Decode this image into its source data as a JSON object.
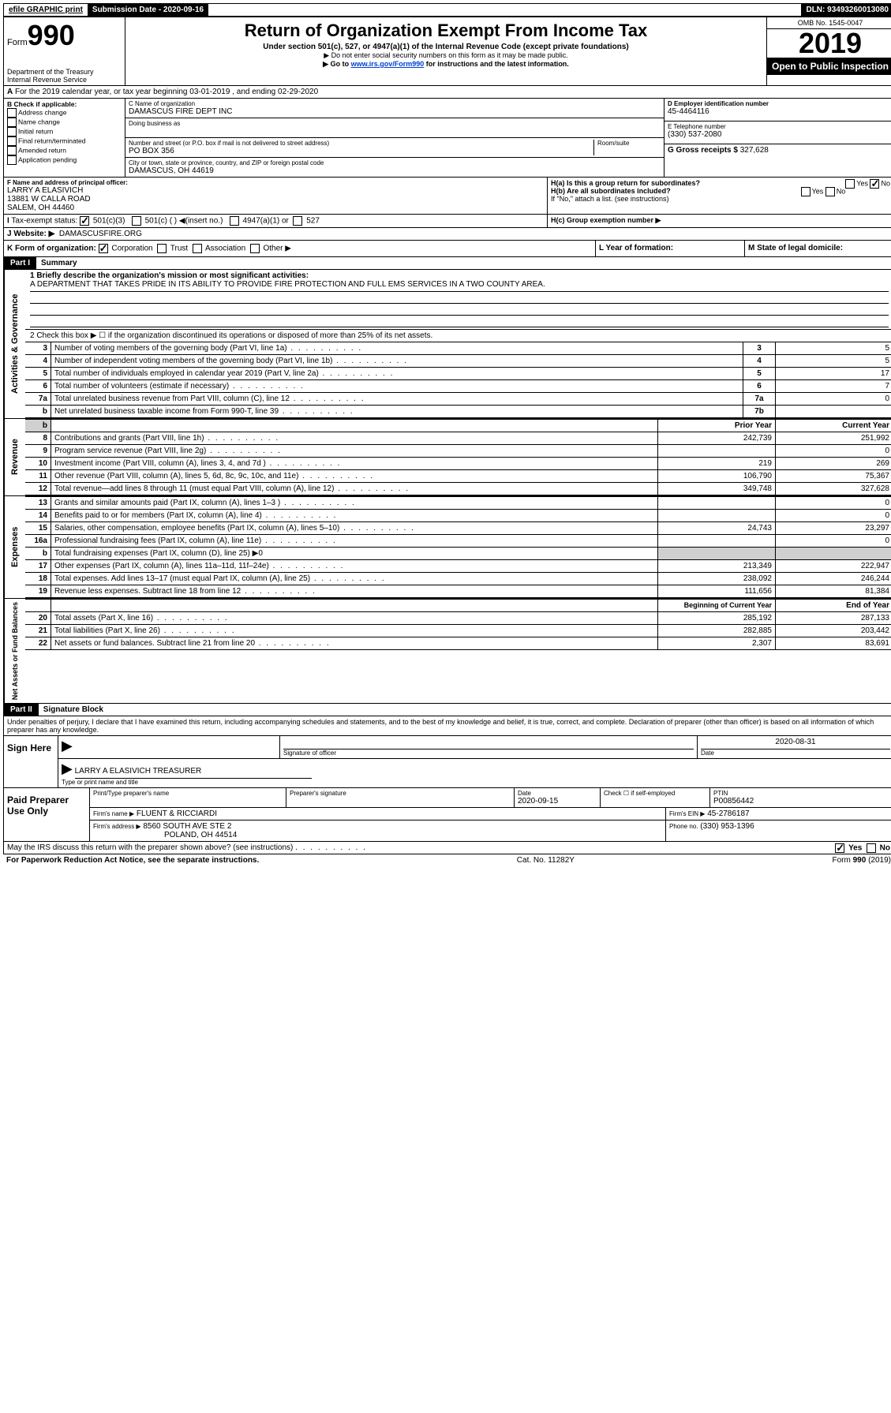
{
  "topbar": {
    "efile": "efile GRAPHIC print",
    "submission_label": "Submission Date - 2020-09-16",
    "dln_label": "DLN: 93493260013080"
  },
  "header": {
    "form_label": "Form",
    "form_number": "990",
    "dept": "Department of the Treasury\nInternal Revenue Service",
    "title": "Return of Organization Exempt From Income Tax",
    "subtitle": "Under section 501(c), 527, or 4947(a)(1) of the Internal Revenue Code (except private foundations)",
    "note1": "▶ Do not enter social security numbers on this form as it may be made public.",
    "note2_pre": "▶ Go to ",
    "note2_link": "www.irs.gov/Form990",
    "note2_post": " for instructions and the latest information.",
    "omb": "OMB No. 1545-0047",
    "year": "2019",
    "open": "Open to Public Inspection"
  },
  "line_a": "For the 2019 calendar year, or tax year beginning 03-01-2019    , and ending 02-29-2020",
  "box_b": {
    "label": "B Check if applicable:",
    "items": [
      "Address change",
      "Name change",
      "Initial return",
      "Final return/terminated",
      "Amended return",
      "Application pending"
    ]
  },
  "box_c": {
    "name_label": "C Name of organization",
    "name": "DAMASCUS FIRE DEPT INC",
    "dba_label": "Doing business as",
    "addr_label": "Number and street (or P.O. box if mail is not delivered to street address)",
    "room_label": "Room/suite",
    "addr": "PO BOX 356",
    "city_label": "City or town, state or province, country, and ZIP or foreign postal code",
    "city": "DAMASCUS, OH  44619"
  },
  "box_d": {
    "label": "D Employer identification number",
    "val": "45-4464116"
  },
  "box_e": {
    "label": "E Telephone number",
    "val": "(330) 537-2080"
  },
  "box_g": {
    "label": "G Gross receipts $",
    "val": "327,628"
  },
  "box_f": {
    "label": "F Name and address of principal officer:",
    "name": "LARRY A ELASIVICH",
    "addr1": "13881 W CALLA ROAD",
    "addr2": "SALEM, OH  44460"
  },
  "box_h": {
    "a_label": "H(a)  Is this a group return for subordinates?",
    "b_label": "H(b)  Are all subordinates included?",
    "b_note": "If \"No,\" attach a list. (see instructions)",
    "c_label": "H(c)  Group exemption number ▶",
    "yes": "Yes",
    "no": "No"
  },
  "box_i": {
    "label": "Tax-exempt status:",
    "opt1": "501(c)(3)",
    "opt2": "501(c) (  ) ◀(insert no.)",
    "opt3": "4947(a)(1) or",
    "opt4": "527"
  },
  "box_j": {
    "label": "Website: ▶",
    "val": "DAMASCUSFIRE.ORG"
  },
  "box_k": {
    "label": "K Form of organization:",
    "corp": "Corporation",
    "trust": "Trust",
    "assoc": "Association",
    "other": "Other ▶"
  },
  "box_l": {
    "label": "L Year of formation:"
  },
  "box_m": {
    "label": "M State of legal domicile:"
  },
  "part1": {
    "header": "Part I",
    "title": "Summary",
    "l1_label": "1  Briefly describe the organization's mission or most significant activities:",
    "l1_text": "A DEPARTMENT THAT TAKES PRIDE IN ITS ABILITY TO PROVIDE FIRE PROTECTION AND FULL EMS SERVICES IN A TWO COUNTY AREA.",
    "l2": "2   Check this box ▶ ☐  if the organization discontinued its operations or disposed of more than 25% of its net assets.",
    "rows_gov": [
      {
        "n": "3",
        "d": "Number of voting members of the governing body (Part VI, line 1a)",
        "ln": "3",
        "v": "5"
      },
      {
        "n": "4",
        "d": "Number of independent voting members of the governing body (Part VI, line 1b)",
        "ln": "4",
        "v": "5"
      },
      {
        "n": "5",
        "d": "Total number of individuals employed in calendar year 2019 (Part V, line 2a)",
        "ln": "5",
        "v": "17"
      },
      {
        "n": "6",
        "d": "Total number of volunteers (estimate if necessary)",
        "ln": "6",
        "v": "7"
      },
      {
        "n": "7a",
        "d": "Total unrelated business revenue from Part VIII, column (C), line 12",
        "ln": "7a",
        "v": "0"
      },
      {
        "n": "b",
        "d": "Net unrelated business taxable income from Form 990-T, line 39",
        "ln": "7b",
        "v": ""
      }
    ],
    "prior_label": "Prior Year",
    "current_label": "Current Year",
    "rows_rev": [
      {
        "n": "8",
        "d": "Contributions and grants (Part VIII, line 1h)",
        "p": "242,739",
        "c": "251,992"
      },
      {
        "n": "9",
        "d": "Program service revenue (Part VIII, line 2g)",
        "p": "",
        "c": "0"
      },
      {
        "n": "10",
        "d": "Investment income (Part VIII, column (A), lines 3, 4, and 7d )",
        "p": "219",
        "c": "269"
      },
      {
        "n": "11",
        "d": "Other revenue (Part VIII, column (A), lines 5, 6d, 8c, 9c, 10c, and 11e)",
        "p": "106,790",
        "c": "75,367"
      },
      {
        "n": "12",
        "d": "Total revenue—add lines 8 through 11 (must equal Part VIII, column (A), line 12)",
        "p": "349,748",
        "c": "327,628"
      }
    ],
    "rows_exp": [
      {
        "n": "13",
        "d": "Grants and similar amounts paid (Part IX, column (A), lines 1–3 )",
        "p": "",
        "c": "0"
      },
      {
        "n": "14",
        "d": "Benefits paid to or for members (Part IX, column (A), line 4)",
        "p": "",
        "c": "0"
      },
      {
        "n": "15",
        "d": "Salaries, other compensation, employee benefits (Part IX, column (A), lines 5–10)",
        "p": "24,743",
        "c": "23,297"
      },
      {
        "n": "16a",
        "d": "Professional fundraising fees (Part IX, column (A), line 11e)",
        "p": "",
        "c": "0"
      },
      {
        "n": "b",
        "d": "Total fundraising expenses (Part IX, column (D), line 25) ▶0",
        "p": "",
        "c": "",
        "noval": true
      },
      {
        "n": "17",
        "d": "Other expenses (Part IX, column (A), lines 11a–11d, 11f–24e)",
        "p": "213,349",
        "c": "222,947"
      },
      {
        "n": "18",
        "d": "Total expenses. Add lines 13–17 (must equal Part IX, column (A), line 25)",
        "p": "238,092",
        "c": "246,244"
      },
      {
        "n": "19",
        "d": "Revenue less expenses. Subtract line 18 from line 12",
        "p": "111,656",
        "c": "81,384"
      }
    ],
    "beg_label": "Beginning of Current Year",
    "end_label": "End of Year",
    "rows_net": [
      {
        "n": "20",
        "d": "Total assets (Part X, line 16)",
        "p": "285,192",
        "c": "287,133"
      },
      {
        "n": "21",
        "d": "Total liabilities (Part X, line 26)",
        "p": "282,885",
        "c": "203,442"
      },
      {
        "n": "22",
        "d": "Net assets or fund balances. Subtract line 21 from line 20",
        "p": "2,307",
        "c": "83,691"
      }
    ],
    "vert_gov": "Activities & Governance",
    "vert_rev": "Revenue",
    "vert_exp": "Expenses",
    "vert_net": "Net Assets or Fund Balances"
  },
  "part2": {
    "header": "Part II",
    "title": "Signature Block",
    "perjury": "Under penalties of perjury, I declare that I have examined this return, including accompanying schedules and statements, and to the best of my knowledge and belief, it is true, correct, and complete. Declaration of preparer (other than officer) is based on all information of which preparer has any knowledge.",
    "sign_here": "Sign Here",
    "sig_officer": "Signature of officer",
    "sig_date": "2020-08-31",
    "date_label": "Date",
    "officer_name": "LARRY A ELASIVICH  TREASURER",
    "type_label": "Type or print name and title",
    "paid": "Paid Preparer Use Only",
    "prep_name_label": "Print/Type preparer's name",
    "prep_sig_label": "Preparer's signature",
    "prep_date_label": "Date",
    "prep_date": "2020-09-15",
    "check_label": "Check ☐ if self-employed",
    "ptin_label": "PTIN",
    "ptin": "P00856442",
    "firm_name_label": "Firm's name    ▶",
    "firm_name": "FLUENT & RICCIARDI",
    "firm_ein_label": "Firm's EIN ▶",
    "firm_ein": "45-2786187",
    "firm_addr_label": "Firm's address ▶",
    "firm_addr1": "8560 SOUTH AVE STE 2",
    "firm_addr2": "POLAND, OH  44514",
    "phone_label": "Phone no.",
    "phone": "(330) 953-1396",
    "discuss": "May the IRS discuss this return with the preparer shown above? (see instructions)",
    "yes": "Yes",
    "no": "No"
  },
  "footer": {
    "left": "For Paperwork Reduction Act Notice, see the separate instructions.",
    "mid": "Cat. No. 11282Y",
    "right": "Form 990 (2019)"
  }
}
